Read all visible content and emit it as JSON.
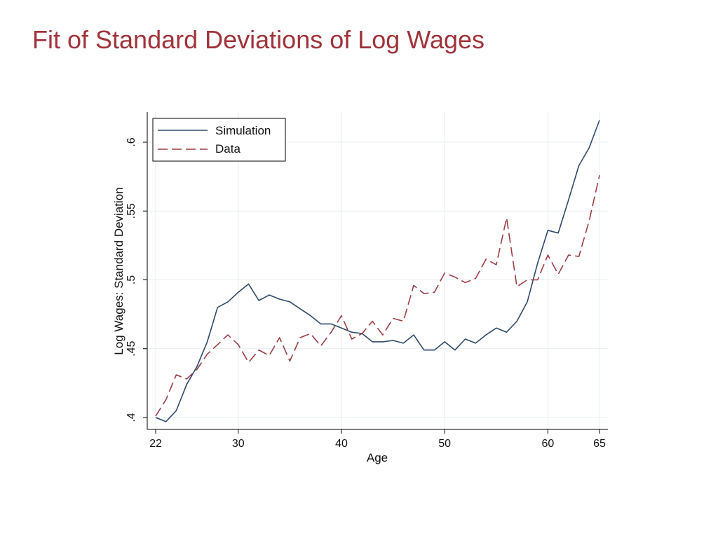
{
  "slide": {
    "title": "Fit of Standard Deviations of Log Wages",
    "title_color": "#a0333a"
  },
  "chart_data": {
    "type": "line",
    "title": "",
    "xlabel": "Age",
    "ylabel": "Log Wages: Standard Deviation",
    "xlim": [
      22,
      65
    ],
    "ylim": [
      0.4,
      0.61
    ],
    "xticks": [
      22,
      30,
      40,
      50,
      60,
      65
    ],
    "xtick_labels": [
      "22",
      "30",
      "40",
      "50",
      "60",
      "65"
    ],
    "yticks": [
      0.4,
      0.45,
      0.5,
      0.55,
      0.6
    ],
    "ytick_labels": [
      ".4",
      ".45",
      ".5",
      ".55",
      ".6"
    ],
    "grid": true,
    "legend_position": "top-left",
    "x": [
      22,
      23,
      24,
      25,
      26,
      27,
      28,
      29,
      30,
      31,
      32,
      33,
      34,
      35,
      36,
      37,
      38,
      39,
      40,
      41,
      42,
      43,
      44,
      45,
      46,
      47,
      48,
      49,
      50,
      51,
      52,
      53,
      54,
      55,
      56,
      57,
      58,
      59,
      60,
      61,
      62,
      63,
      64,
      65
    ],
    "series": [
      {
        "name": "Simulation",
        "style": "solid",
        "color": "#2e4a6b",
        "values": [
          0.4,
          0.397,
          0.405,
          0.424,
          0.437,
          0.455,
          0.48,
          0.484,
          0.491,
          0.497,
          0.485,
          0.489,
          0.486,
          0.484,
          0.479,
          0.474,
          0.468,
          0.468,
          0.465,
          0.462,
          0.461,
          0.455,
          0.455,
          0.456,
          0.454,
          0.46,
          0.449,
          0.449,
          0.455,
          0.449,
          0.457,
          0.454,
          0.46,
          0.465,
          0.462,
          0.47,
          0.484,
          0.512,
          0.536,
          0.534,
          0.558,
          0.583,
          0.596,
          0.616
        ]
      },
      {
        "name": "Data",
        "style": "dashed",
        "color": "#9c3d44",
        "values": [
          0.401,
          0.413,
          0.431,
          0.428,
          0.435,
          0.446,
          0.453,
          0.46,
          0.453,
          0.44,
          0.449,
          0.445,
          0.458,
          0.441,
          0.458,
          0.461,
          0.452,
          0.462,
          0.474,
          0.457,
          0.461,
          0.47,
          0.46,
          0.472,
          0.47,
          0.496,
          0.49,
          0.491,
          0.505,
          0.502,
          0.498,
          0.501,
          0.515,
          0.511,
          0.545,
          0.495,
          0.5,
          0.5,
          0.518,
          0.504,
          0.518,
          0.517,
          0.543,
          0.576
        ]
      }
    ]
  }
}
